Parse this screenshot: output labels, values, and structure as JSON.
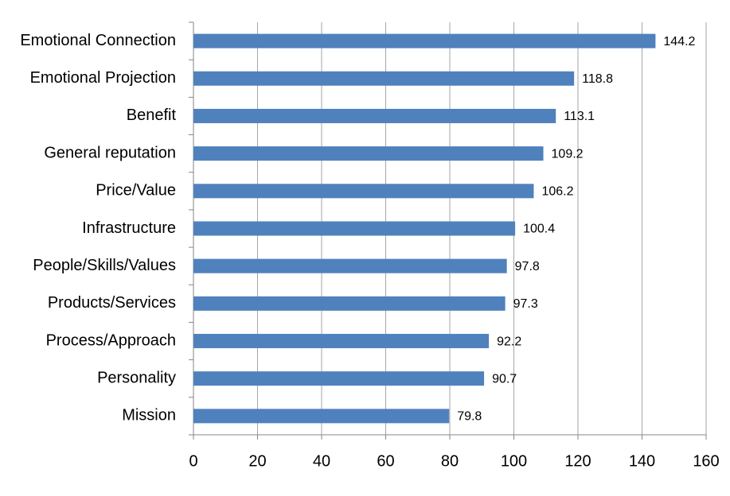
{
  "chart_data": {
    "type": "bar",
    "orientation": "horizontal",
    "categories": [
      "Emotional Connection",
      "Emotional Projection",
      "Benefit",
      "General reputation",
      "Price/Value",
      "Infrastructure",
      "People/Skills/Values",
      "Products/Services",
      "Process/Approach",
      "Personality",
      "Mission"
    ],
    "values": [
      144.2,
      118.8,
      113.1,
      109.2,
      106.2,
      100.4,
      97.8,
      97.3,
      92.2,
      90.7,
      79.8
    ],
    "color": "#4f81bd",
    "xlim": [
      0,
      160
    ],
    "xticks": [
      0,
      20,
      40,
      60,
      80,
      100,
      120,
      140,
      160
    ],
    "grid": true
  }
}
